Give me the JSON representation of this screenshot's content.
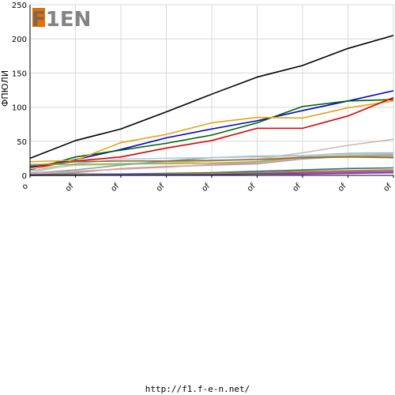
{
  "logo_text": "F1EN",
  "footer_url": "http://f1.f-e-n.net/",
  "chart_data": {
    "type": "line",
    "ylabel": "ФПЮЛИ",
    "ylim": [
      0,
      250
    ],
    "yticks": [
      0,
      50,
      100,
      150,
      200,
      250
    ],
    "x": [
      0,
      1,
      2,
      3,
      4,
      5,
      6,
      7,
      8
    ],
    "xtick_labels": [
      "o",
      "of",
      "of",
      "of",
      "of",
      "of",
      "of",
      "of",
      "of"
    ],
    "grid": true,
    "series": [
      {
        "color": "#000000",
        "values": [
          25,
          51,
          68,
          93,
          119,
          144,
          161,
          186,
          205
        ]
      },
      {
        "color": "#0000cc",
        "values": [
          12,
          23,
          38,
          55,
          68,
          80,
          95,
          109,
          124
        ]
      },
      {
        "color": "#006600",
        "values": [
          8,
          27,
          37,
          47,
          59,
          77,
          101,
          109,
          111
        ]
      },
      {
        "color": "#e8a317",
        "values": [
          20,
          22,
          48,
          60,
          77,
          85,
          84,
          99,
          109
        ]
      },
      {
        "color": "#dd0000",
        "values": [
          10,
          21,
          27,
          40,
          51,
          69,
          69,
          87,
          114
        ]
      },
      {
        "color": "#c8b8b0",
        "values": [
          7,
          15,
          17,
          19,
          22,
          24,
          33,
          44,
          53
        ]
      },
      {
        "color": "#f0c060",
        "values": [
          10,
          15,
          16,
          18,
          21,
          24,
          27,
          29,
          31
        ]
      },
      {
        "color": "#7aa8a8",
        "values": [
          3,
          8,
          15,
          21,
          26,
          28,
          29,
          32,
          33
        ]
      },
      {
        "color": "#a0a0a0",
        "values": [
          1,
          4,
          10,
          13,
          15,
          17,
          24,
          28,
          30
        ]
      },
      {
        "color": "#aaccee",
        "values": [
          4,
          17,
          24,
          25,
          26,
          27,
          29,
          31,
          32
        ]
      },
      {
        "color": "#ee9999",
        "values": [
          3,
          6,
          9,
          12,
          16,
          19,
          26,
          27,
          28
        ]
      },
      {
        "color": "#88bb66",
        "values": [
          16,
          16,
          17,
          17,
          18,
          20,
          27,
          28,
          27
        ]
      },
      {
        "color": "#336699",
        "values": [
          1,
          2,
          2,
          3,
          4,
          6,
          8,
          10,
          11
        ]
      },
      {
        "color": "#cc3399",
        "values": [
          0,
          1,
          1,
          1,
          2,
          3,
          4,
          5,
          6
        ]
      },
      {
        "color": "#999900",
        "values": [
          0,
          1,
          1,
          2,
          3,
          4,
          6,
          7,
          8
        ]
      },
      {
        "color": "#6633cc",
        "values": [
          0,
          0,
          1,
          1,
          1,
          2,
          2,
          3,
          4
        ]
      },
      {
        "color": "#996633",
        "values": [
          14,
          20,
          21,
          21,
          22,
          23,
          26,
          27,
          26
        ]
      }
    ]
  }
}
